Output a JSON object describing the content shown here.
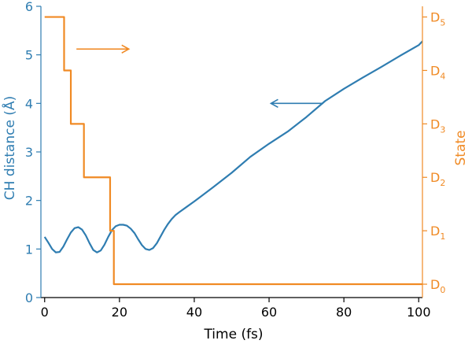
{
  "chart_data": {
    "type": "line",
    "title": "",
    "xlabel": "Time (fs)",
    "ylabel_left": "CH distance (Å)",
    "ylabel_right": "State",
    "xlim": [
      -1,
      101
    ],
    "ylim_left": [
      0,
      6
    ],
    "ylim_right": [
      -0.25,
      5.2
    ],
    "x_ticks": [
      0,
      20,
      40,
      60,
      80,
      100
    ],
    "y_left_ticks": [
      0,
      1,
      2,
      3,
      4,
      5,
      6
    ],
    "y_right_ticks": [
      {
        "value": 0,
        "label": "D",
        "sub": "0"
      },
      {
        "value": 1,
        "label": "D",
        "sub": "1"
      },
      {
        "value": 2,
        "label": "D",
        "sub": "2"
      },
      {
        "value": 3,
        "label": "D",
        "sub": "3"
      },
      {
        "value": 4,
        "label": "D",
        "sub": "4"
      },
      {
        "value": 5,
        "label": "D",
        "sub": "5"
      }
    ],
    "grid": false,
    "colors": {
      "ch_distance": "#2f7db1",
      "state": "#f08a24",
      "axis": "#000000"
    },
    "series": [
      {
        "key": "ch_distance",
        "axis": "left",
        "x": [
          0,
          1,
          2,
          3,
          4,
          5,
          6,
          7,
          8,
          9,
          10,
          11,
          12,
          13,
          14,
          15,
          16,
          17,
          18,
          19,
          20,
          21,
          22,
          23,
          24,
          25,
          26,
          27,
          28,
          29,
          30,
          31,
          32,
          33,
          34,
          35,
          36,
          38,
          40,
          45,
          50,
          55,
          60,
          65,
          70,
          75,
          80,
          85,
          90,
          95,
          100,
          101
        ],
        "y": [
          1.25,
          1.13,
          1.0,
          0.93,
          0.94,
          1.05,
          1.2,
          1.34,
          1.43,
          1.45,
          1.4,
          1.28,
          1.12,
          0.98,
          0.93,
          0.97,
          1.09,
          1.25,
          1.39,
          1.47,
          1.5,
          1.5,
          1.48,
          1.42,
          1.33,
          1.2,
          1.08,
          1.0,
          0.98,
          1.02,
          1.12,
          1.26,
          1.4,
          1.52,
          1.62,
          1.7,
          1.76,
          1.87,
          1.98,
          2.27,
          2.57,
          2.9,
          3.17,
          3.42,
          3.72,
          4.05,
          4.3,
          4.53,
          4.75,
          4.98,
          5.2,
          5.28
        ]
      },
      {
        "key": "state",
        "axis": "right",
        "step": true,
        "x": [
          0,
          5.2,
          7,
          10.5,
          17.5,
          18.5,
          101
        ],
        "y": [
          5,
          4,
          3,
          2,
          1,
          0,
          0
        ]
      }
    ],
    "annotations": [
      {
        "type": "arrow",
        "target_axis": "right",
        "direction": "right",
        "x_from": 8.5,
        "x_to": 22.5,
        "y": 4.4
      },
      {
        "type": "arrow",
        "target_axis": "left",
        "direction": "left",
        "x_from": 74.5,
        "x_to": 60.5,
        "y": 4.0
      }
    ]
  }
}
